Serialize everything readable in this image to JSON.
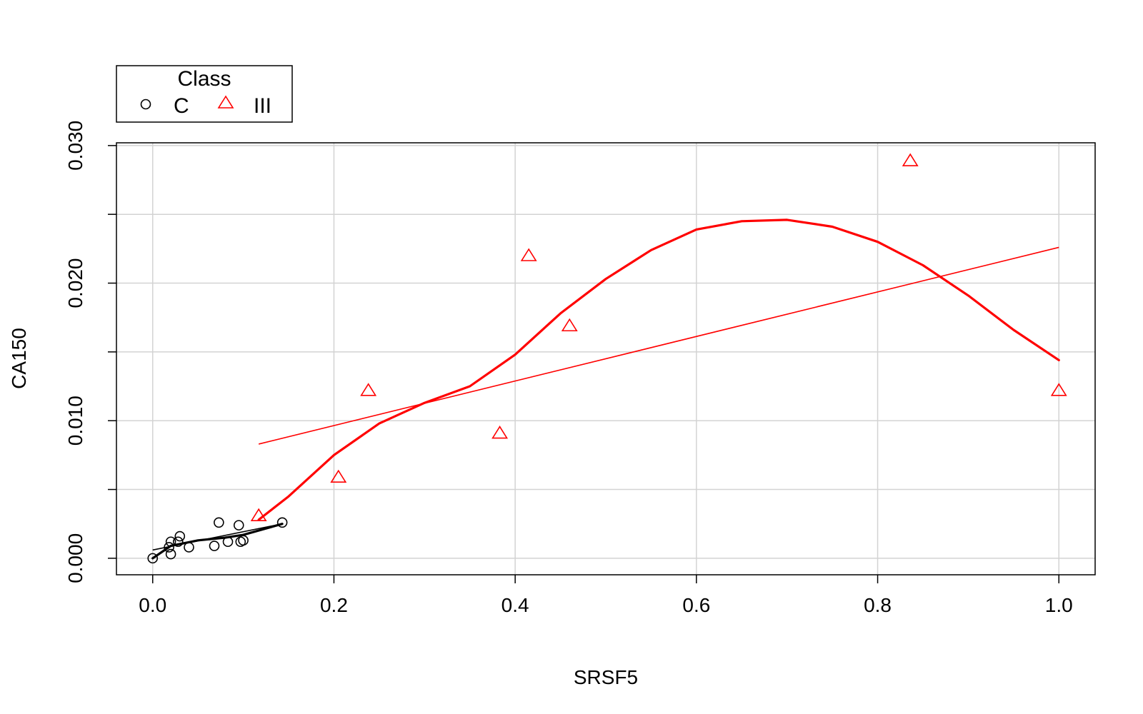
{
  "chart_data": {
    "type": "scatter",
    "xlabel": "SRSF5",
    "ylabel": "CA150",
    "xlim": [
      -0.04,
      1.04
    ],
    "ylim": [
      -0.0012,
      0.0302
    ],
    "x_ticks": [
      0.0,
      0.2,
      0.4,
      0.6,
      0.8,
      1.0
    ],
    "x_tick_labels": [
      "0.0",
      "0.2",
      "0.4",
      "0.6",
      "0.8",
      "1.0"
    ],
    "y_ticks": [
      0.0,
      0.005,
      0.01,
      0.015,
      0.02,
      0.025,
      0.03
    ],
    "y_tick_labels": [
      "0.000",
      "",
      "0.010",
      "",
      "0.020",
      "",
      "0.030"
    ],
    "grid": true,
    "legend": {
      "title": "Class",
      "position": "top-left",
      "entries": [
        {
          "label": "C",
          "marker": "circle",
          "color": "#000000"
        },
        {
          "label": "III",
          "marker": "triangle",
          "color": "#ff0000"
        }
      ]
    },
    "series": [
      {
        "name": "C",
        "color": "#000000",
        "marker": "circle",
        "points": [
          [
            0.0,
            0.0
          ],
          [
            0.018,
            0.0008
          ],
          [
            0.02,
            0.0003
          ],
          [
            0.02,
            0.0012
          ],
          [
            0.028,
            0.0012
          ],
          [
            0.03,
            0.0016
          ],
          [
            0.04,
            0.0008
          ],
          [
            0.068,
            0.0009
          ],
          [
            0.073,
            0.0026
          ],
          [
            0.083,
            0.0012
          ],
          [
            0.095,
            0.0024
          ],
          [
            0.097,
            0.0012
          ],
          [
            0.1,
            0.0013
          ],
          [
            0.143,
            0.0026
          ]
        ],
        "linear_fit": [
          [
            0.0,
            0.0006
          ],
          [
            0.143,
            0.0025
          ]
        ],
        "smooth_fit": [
          [
            0.0,
            0.0
          ],
          [
            0.02,
            0.0009
          ],
          [
            0.05,
            0.0013
          ],
          [
            0.08,
            0.0015
          ],
          [
            0.1,
            0.0017
          ],
          [
            0.143,
            0.0025
          ]
        ]
      },
      {
        "name": "III",
        "color": "#ff0000",
        "marker": "triangle",
        "points": [
          [
            0.117,
            0.0031
          ],
          [
            0.205,
            0.0059
          ],
          [
            0.238,
            0.0122
          ],
          [
            0.383,
            0.0091
          ],
          [
            0.415,
            0.022
          ],
          [
            0.46,
            0.0169
          ],
          [
            0.836,
            0.0289
          ],
          [
            1.0,
            0.0122
          ]
        ],
        "linear_fit": [
          [
            0.117,
            0.0083
          ],
          [
            1.0,
            0.0226
          ]
        ],
        "smooth_fit": [
          [
            0.117,
            0.0028
          ],
          [
            0.15,
            0.0045
          ],
          [
            0.2,
            0.0075
          ],
          [
            0.25,
            0.0098
          ],
          [
            0.3,
            0.0113
          ],
          [
            0.35,
            0.0125
          ],
          [
            0.4,
            0.0148
          ],
          [
            0.45,
            0.0178
          ],
          [
            0.5,
            0.0203
          ],
          [
            0.55,
            0.0224
          ],
          [
            0.6,
            0.0239
          ],
          [
            0.65,
            0.0245
          ],
          [
            0.7,
            0.0246
          ],
          [
            0.75,
            0.0241
          ],
          [
            0.8,
            0.023
          ],
          [
            0.85,
            0.0213
          ],
          [
            0.9,
            0.0191
          ],
          [
            0.95,
            0.0166
          ],
          [
            1.0,
            0.0144
          ]
        ]
      }
    ]
  }
}
